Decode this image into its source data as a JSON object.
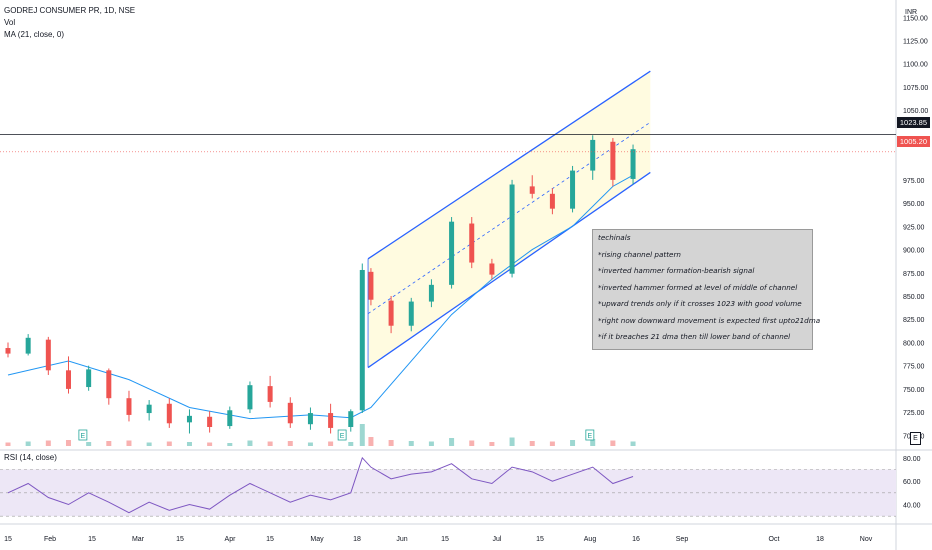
{
  "header": {
    "title": "GODREJ CONSUMER PR, 1D, NSE",
    "vol_label": "Vol",
    "ma_label": "MA (21, close, 0)"
  },
  "rsi_header": {
    "label": "RSI (14, close)"
  },
  "price_axis": {
    "unit": "INR",
    "ticks": [
      "1150.00",
      "1125.00",
      "1100.00",
      "1075.00",
      "1050.00",
      "1023.85",
      "1005.20",
      "975.00",
      "950.00",
      "925.00",
      "900.00",
      "875.00",
      "850.00",
      "825.00",
      "800.00",
      "775.00",
      "750.00",
      "725.00",
      "700.00"
    ],
    "current_price": "1023.85",
    "last_close": "1005.20"
  },
  "rsi_axis": {
    "ticks": [
      "80.00",
      "60.00",
      "40.00"
    ]
  },
  "time_axis": {
    "labels": [
      "15",
      "Feb",
      "15",
      "Mar",
      "15",
      "Apr",
      "15",
      "May",
      "18",
      "Jun",
      "15",
      "Jul",
      "15",
      "Aug",
      "16",
      "Sep",
      "Oct",
      "18",
      "Nov"
    ]
  },
  "notes": {
    "title": "techinals",
    "lines": [
      "*rising channel pattern",
      "*inverted hammer formation-bearish signal",
      "*inverted hammer formed at level of middle of channel",
      "*upward trends only if it crosses 1023 with good volume",
      "*right now downward movement is expected  first upto21dma",
      "*if it breaches 21 dma then till lower band of channel"
    ]
  },
  "earnings_marker": "E",
  "colors": {
    "up": "#26a69a",
    "down": "#ef5350",
    "ma": "#2196f3",
    "channel": "#2962ff",
    "channel_fill": "#fffbe0",
    "rsi_line": "#7e57c2",
    "rsi_band": "#ede7f6",
    "price_line": "#131722",
    "last_close_line": "#ef5350"
  },
  "chart_data": {
    "type": "candlestick",
    "title": "GODREJ CONSUMER PR, 1D, NSE",
    "ylim": [
      695,
      1160
    ],
    "rsi_ylim": [
      25,
      85
    ],
    "channel": {
      "upper": [
        {
          "date": "2023-05-18",
          "price": 890
        },
        {
          "date": "2023-08-24",
          "price": 1092
        }
      ],
      "lower": [
        {
          "date": "2023-05-18",
          "price": 773
        },
        {
          "date": "2023-08-24",
          "price": 983
        }
      ],
      "middle": [
        {
          "date": "2023-05-18",
          "price": 831
        },
        {
          "date": "2023-08-24",
          "price": 1037
        }
      ]
    },
    "horizontal_levels": [
      {
        "label": "1023.85",
        "price": 1023.85
      },
      {
        "label": "1005.20",
        "price": 1005.2
      }
    ],
    "candles": [
      {
        "date": "2023-01-13",
        "open": 794,
        "high": 800,
        "low": 784,
        "close": 788,
        "volume": 0.35
      },
      {
        "date": "2023-01-20",
        "open": 788,
        "high": 809,
        "low": 786,
        "close": 805,
        "volume": 0.45
      },
      {
        "date": "2023-01-27",
        "open": 803,
        "high": 806,
        "low": 765,
        "close": 770,
        "volume": 0.55
      },
      {
        "date": "2023-02-03",
        "open": 770,
        "high": 785,
        "low": 745,
        "close": 750,
        "volume": 0.6
      },
      {
        "date": "2023-02-10",
        "open": 752,
        "high": 775,
        "low": 748,
        "close": 771,
        "volume": 0.4
      },
      {
        "date": "2023-02-17",
        "open": 770,
        "high": 772,
        "low": 733,
        "close": 740,
        "volume": 0.5
      },
      {
        "date": "2023-02-24",
        "open": 740,
        "high": 748,
        "low": 715,
        "close": 722,
        "volume": 0.55
      },
      {
        "date": "2023-03-03",
        "open": 724,
        "high": 738,
        "low": 716,
        "close": 733,
        "volume": 0.35
      },
      {
        "date": "2023-03-10",
        "open": 734,
        "high": 740,
        "low": 708,
        "close": 713,
        "volume": 0.45
      },
      {
        "date": "2023-03-17",
        "open": 714,
        "high": 728,
        "low": 702,
        "close": 721,
        "volume": 0.4
      },
      {
        "date": "2023-03-24",
        "open": 720,
        "high": 726,
        "low": 703,
        "close": 709,
        "volume": 0.35
      },
      {
        "date": "2023-03-31",
        "open": 710,
        "high": 731,
        "low": 707,
        "close": 727,
        "volume": 0.3
      },
      {
        "date": "2023-04-07",
        "open": 728,
        "high": 758,
        "low": 724,
        "close": 754,
        "volume": 0.55
      },
      {
        "date": "2023-04-14",
        "open": 753,
        "high": 764,
        "low": 730,
        "close": 736,
        "volume": 0.45
      },
      {
        "date": "2023-04-21",
        "open": 735,
        "high": 741,
        "low": 708,
        "close": 713,
        "volume": 0.5
      },
      {
        "date": "2023-04-28",
        "open": 712,
        "high": 730,
        "low": 706,
        "close": 724,
        "volume": 0.35
      },
      {
        "date": "2023-05-05",
        "open": 724,
        "high": 734,
        "low": 702,
        "close": 708,
        "volume": 0.45
      },
      {
        "date": "2023-05-12",
        "open": 709,
        "high": 728,
        "low": 704,
        "close": 726,
        "volume": 0.4
      },
      {
        "date": "2023-05-16",
        "open": 727,
        "high": 885,
        "low": 724,
        "close": 878,
        "volume": 2.2
      },
      {
        "date": "2023-05-19",
        "open": 876,
        "high": 880,
        "low": 840,
        "close": 846,
        "volume": 0.9
      },
      {
        "date": "2023-05-26",
        "open": 845,
        "high": 850,
        "low": 810,
        "close": 818,
        "volume": 0.6
      },
      {
        "date": "2023-06-02",
        "open": 818,
        "high": 848,
        "low": 812,
        "close": 844,
        "volume": 0.5
      },
      {
        "date": "2023-06-09",
        "open": 844,
        "high": 868,
        "low": 838,
        "close": 862,
        "volume": 0.45
      },
      {
        "date": "2023-06-16",
        "open": 862,
        "high": 935,
        "low": 858,
        "close": 930,
        "volume": 0.8
      },
      {
        "date": "2023-06-23",
        "open": 928,
        "high": 935,
        "low": 880,
        "close": 886,
        "volume": 0.55
      },
      {
        "date": "2023-06-30",
        "open": 885,
        "high": 890,
        "low": 868,
        "close": 873,
        "volume": 0.4
      },
      {
        "date": "2023-07-07",
        "open": 874,
        "high": 975,
        "low": 870,
        "close": 970,
        "volume": 0.85
      },
      {
        "date": "2023-07-14",
        "open": 968,
        "high": 980,
        "low": 955,
        "close": 960,
        "volume": 0.5
      },
      {
        "date": "2023-07-21",
        "open": 960,
        "high": 966,
        "low": 938,
        "close": 944,
        "volume": 0.45
      },
      {
        "date": "2023-07-28",
        "open": 944,
        "high": 990,
        "low": 940,
        "close": 985,
        "volume": 0.6
      },
      {
        "date": "2023-08-04",
        "open": 985,
        "high": 1023,
        "low": 975,
        "close": 1018,
        "volume": 0.7
      },
      {
        "date": "2023-08-11",
        "open": 1016,
        "high": 1020,
        "low": 968,
        "close": 975,
        "volume": 0.55
      },
      {
        "date": "2023-08-18",
        "open": 976,
        "high": 1013,
        "low": 970,
        "close": 1008,
        "volume": 0.45
      }
    ],
    "ma21": [
      {
        "date": "2023-01-13",
        "value": 765
      },
      {
        "date": "2023-02-03",
        "value": 780
      },
      {
        "date": "2023-02-24",
        "value": 760
      },
      {
        "date": "2023-03-17",
        "value": 730
      },
      {
        "date": "2023-04-07",
        "value": 718
      },
      {
        "date": "2023-04-28",
        "value": 722
      },
      {
        "date": "2023-05-12",
        "value": 719
      },
      {
        "date": "2023-05-19",
        "value": 730
      },
      {
        "date": "2023-06-02",
        "value": 780
      },
      {
        "date": "2023-06-16",
        "value": 830
      },
      {
        "date": "2023-06-30",
        "value": 868
      },
      {
        "date": "2023-07-14",
        "value": 900
      },
      {
        "date": "2023-07-28",
        "value": 925
      },
      {
        "date": "2023-08-11",
        "value": 968
      },
      {
        "date": "2023-08-18",
        "value": 980
      }
    ],
    "rsi": [
      {
        "date": "2023-01-13",
        "value": 50
      },
      {
        "date": "2023-01-20",
        "value": 58
      },
      {
        "date": "2023-01-27",
        "value": 46
      },
      {
        "date": "2023-02-03",
        "value": 40
      },
      {
        "date": "2023-02-10",
        "value": 50
      },
      {
        "date": "2023-02-17",
        "value": 42
      },
      {
        "date": "2023-02-24",
        "value": 33
      },
      {
        "date": "2023-03-03",
        "value": 42
      },
      {
        "date": "2023-03-10",
        "value": 35
      },
      {
        "date": "2023-03-17",
        "value": 40
      },
      {
        "date": "2023-03-24",
        "value": 36
      },
      {
        "date": "2023-03-31",
        "value": 48
      },
      {
        "date": "2023-04-07",
        "value": 58
      },
      {
        "date": "2023-04-14",
        "value": 50
      },
      {
        "date": "2023-04-21",
        "value": 42
      },
      {
        "date": "2023-04-28",
        "value": 48
      },
      {
        "date": "2023-05-05",
        "value": 44
      },
      {
        "date": "2023-05-12",
        "value": 50
      },
      {
        "date": "2023-05-16",
        "value": 80
      },
      {
        "date": "2023-05-19",
        "value": 72
      },
      {
        "date": "2023-05-26",
        "value": 62
      },
      {
        "date": "2023-06-02",
        "value": 66
      },
      {
        "date": "2023-06-09",
        "value": 68
      },
      {
        "date": "2023-06-16",
        "value": 75
      },
      {
        "date": "2023-06-23",
        "value": 62
      },
      {
        "date": "2023-06-30",
        "value": 58
      },
      {
        "date": "2023-07-07",
        "value": 72
      },
      {
        "date": "2023-07-14",
        "value": 68
      },
      {
        "date": "2023-07-21",
        "value": 60
      },
      {
        "date": "2023-07-28",
        "value": 66
      },
      {
        "date": "2023-08-04",
        "value": 72
      },
      {
        "date": "2023-08-11",
        "value": 58
      },
      {
        "date": "2023-08-18",
        "value": 64
      }
    ],
    "earnings_dates": [
      "2023-02-08",
      "2023-05-09",
      "2023-08-03"
    ]
  }
}
